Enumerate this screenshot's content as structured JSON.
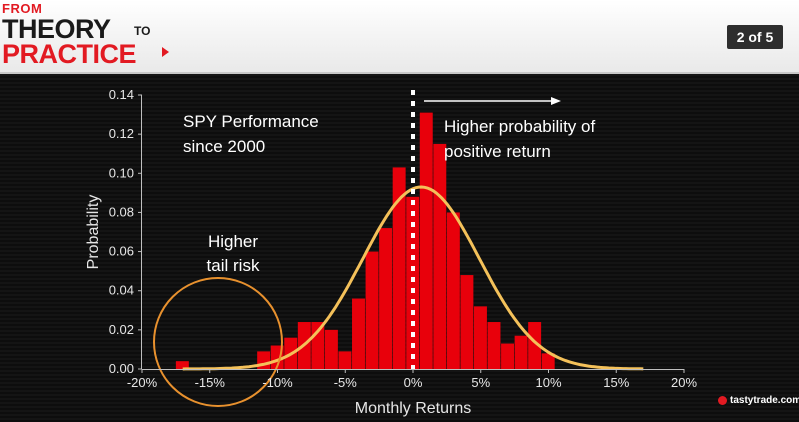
{
  "header": {
    "from": "FROM",
    "theory": "THEORY",
    "to": "TO",
    "practice": "PRACTICE",
    "page_badge": "2 of 5"
  },
  "watermark": "tastytrade.com",
  "colors": {
    "bar": "#e8000b",
    "curve": "#f4c15a",
    "circle": "#e8912e",
    "text": "#ffffff"
  },
  "chart_data": {
    "type": "bar",
    "title": "",
    "xlabel": "Monthly Returns",
    "ylabel": "Probability",
    "xlim": [
      -0.2,
      0.2
    ],
    "ylim": [
      0,
      0.14
    ],
    "x_ticks": [
      "-20%",
      "-15%",
      "-10%",
      "-5%",
      "0%",
      "5%",
      "10%",
      "15%",
      "20%"
    ],
    "x_tick_values": [
      -0.2,
      -0.15,
      -0.1,
      -0.05,
      0.0,
      0.05,
      0.1,
      0.15,
      0.2
    ],
    "y_ticks": [
      "0.00",
      "0.02",
      "0.04",
      "0.06",
      "0.08",
      "0.10",
      "0.12",
      "0.14"
    ],
    "y_tick_values": [
      0.0,
      0.02,
      0.04,
      0.06,
      0.08,
      0.1,
      0.12,
      0.14
    ],
    "bin_width": 0.01,
    "bins": [
      {
        "x": -0.17,
        "y": 0.004
      },
      {
        "x": -0.11,
        "y": 0.009
      },
      {
        "x": -0.1,
        "y": 0.012
      },
      {
        "x": -0.09,
        "y": 0.016
      },
      {
        "x": -0.08,
        "y": 0.024
      },
      {
        "x": -0.07,
        "y": 0.024
      },
      {
        "x": -0.06,
        "y": 0.02
      },
      {
        "x": -0.05,
        "y": 0.009
      },
      {
        "x": -0.04,
        "y": 0.036
      },
      {
        "x": -0.03,
        "y": 0.06
      },
      {
        "x": -0.02,
        "y": 0.072
      },
      {
        "x": -0.01,
        "y": 0.103
      },
      {
        "x": 0.0,
        "y": 0.088
      },
      {
        "x": 0.01,
        "y": 0.131
      },
      {
        "x": 0.02,
        "y": 0.115
      },
      {
        "x": 0.03,
        "y": 0.08
      },
      {
        "x": 0.04,
        "y": 0.048
      },
      {
        "x": 0.05,
        "y": 0.032
      },
      {
        "x": 0.06,
        "y": 0.024
      },
      {
        "x": 0.07,
        "y": 0.013
      },
      {
        "x": 0.08,
        "y": 0.017
      },
      {
        "x": 0.09,
        "y": 0.024
      },
      {
        "x": 0.1,
        "y": 0.008
      }
    ],
    "normal_fit": {
      "mean": 0.006,
      "std": 0.043,
      "peak": 0.093,
      "x_range": [
        -0.17,
        0.17
      ]
    },
    "annotations": {
      "spy_line1": "SPY Performance",
      "spy_line2": "since 2000",
      "tail_line1": "Higher",
      "tail_line2": "tail risk",
      "positive_line1": "Higher probability of",
      "positive_line2": "positive return"
    },
    "grid": false,
    "legend": "none"
  }
}
